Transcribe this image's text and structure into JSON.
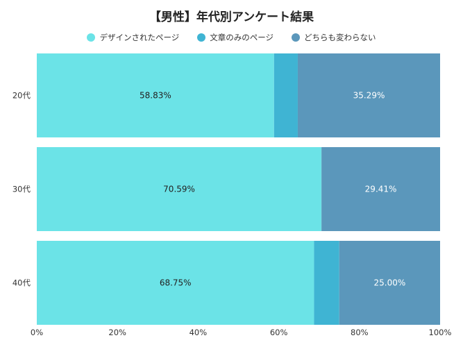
{
  "title": "【男性】年代別アンケート結果",
  "legend": {
    "items": [
      {
        "label": "デザインされたページ",
        "color": "#6be3e7"
      },
      {
        "label": "文章のみのページ",
        "color": "#3fb4d3"
      },
      {
        "label": "どちらも変わらない",
        "color": "#5b97bb"
      }
    ]
  },
  "chart_data": {
    "type": "bar",
    "orientation": "horizontal",
    "stacked": true,
    "title": "【男性】年代別アンケート結果",
    "categories": [
      "20代",
      "30代",
      "40代"
    ],
    "series": [
      {
        "name": "デザインされたページ",
        "color": "#6be3e7",
        "values": [
          58.83,
          70.59,
          68.75
        ]
      },
      {
        "name": "文章のみのページ",
        "color": "#3fb4d3",
        "values": [
          5.88,
          0,
          6.25
        ]
      },
      {
        "name": "どちらも変わらない",
        "color": "#5b97bb",
        "values": [
          35.29,
          29.41,
          25.0
        ]
      }
    ],
    "data_labels": [
      [
        "58.83%",
        null,
        "35.29%"
      ],
      [
        "70.59%",
        null,
        "29.41%"
      ],
      [
        "68.75%",
        null,
        "25.00%"
      ]
    ],
    "label_colors": [
      "#222222",
      "#ffffff",
      "#ffffff"
    ],
    "xlim": [
      0,
      100
    ],
    "x_ticks": [
      "0%",
      "20%",
      "40%",
      "60%",
      "80%",
      "100%"
    ],
    "legend_position": "top-center",
    "grid": false
  }
}
